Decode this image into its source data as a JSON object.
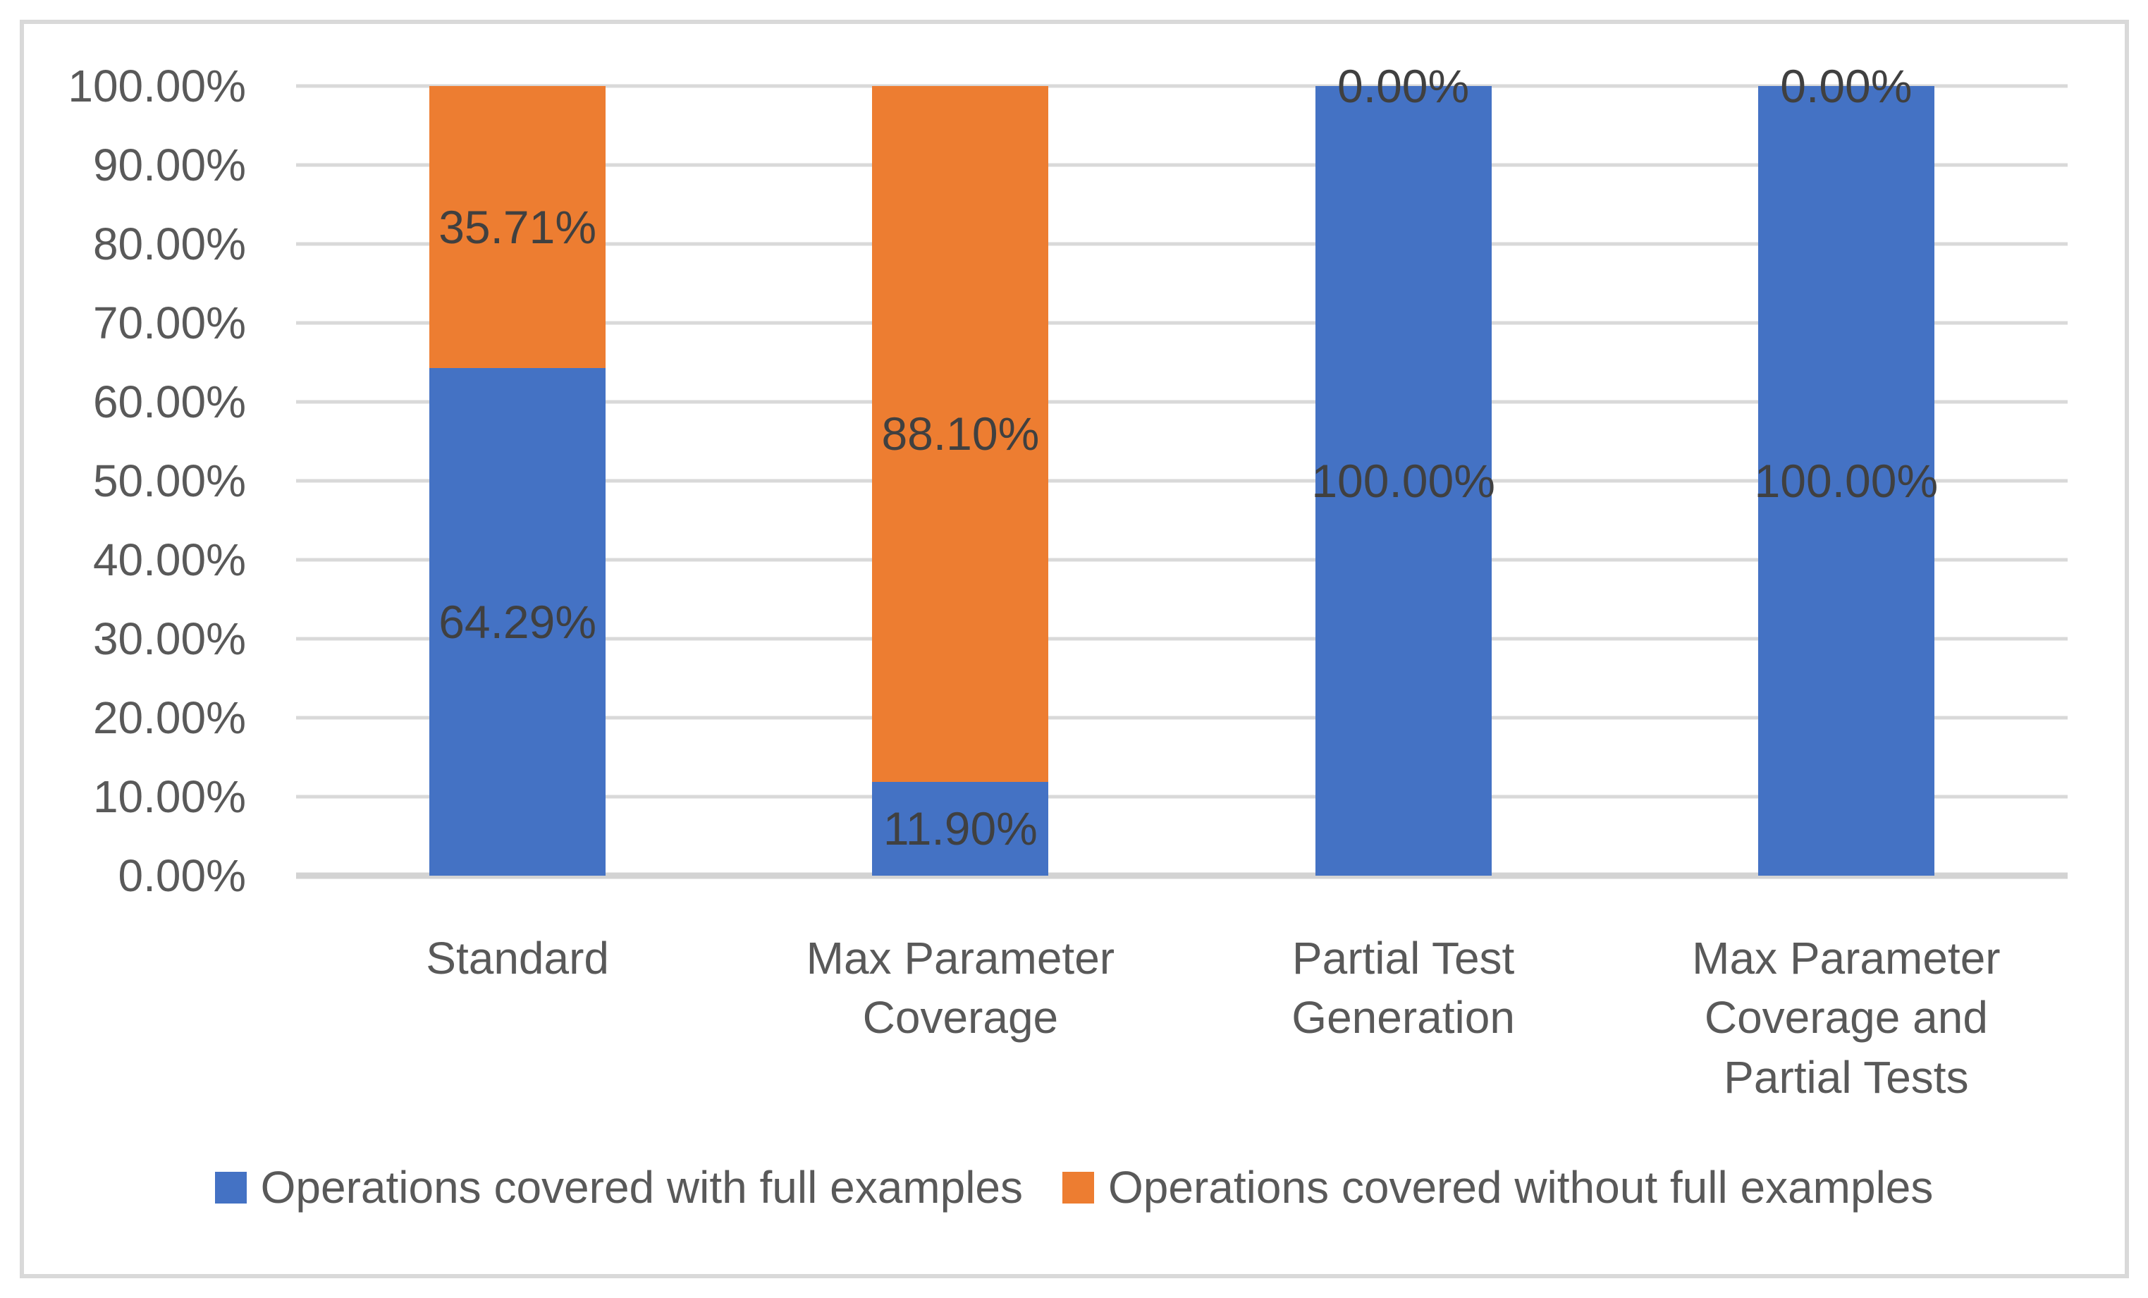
{
  "chart_data": {
    "type": "bar",
    "stacked": true,
    "orientation": "vertical",
    "title": "",
    "xlabel": "",
    "ylabel": "",
    "categories": [
      "Standard",
      "Max Parameter Coverage",
      "Partial Test Generation",
      "Max Parameter Coverage and Partial Tests"
    ],
    "series": [
      {
        "name": "Operations covered with full examples",
        "color": "#4472C4",
        "values": [
          64.29,
          11.9,
          100.0,
          100.0
        ]
      },
      {
        "name": "Operations covered without full examples",
        "color": "#ED7D31",
        "values": [
          35.71,
          88.1,
          0.0,
          0.0
        ]
      }
    ],
    "data_labels": {
      "show": true,
      "format": "0.00%",
      "placement": "center",
      "values_text": [
        [
          "64.29%",
          "11.90%",
          "100.00%",
          "100.00%"
        ],
        [
          "35.71%",
          "88.10%",
          "0.00%",
          "0.00%"
        ]
      ]
    },
    "y_axis": {
      "min": 0,
      "max": 100,
      "step": 10,
      "tick_labels": [
        "0.00%",
        "10.00%",
        "20.00%",
        "30.00%",
        "40.00%",
        "50.00%",
        "60.00%",
        "70.00%",
        "80.00%",
        "90.00%",
        "100.00%"
      ]
    },
    "gridlines": true,
    "legend": {
      "position": "bottom",
      "entries": [
        {
          "label": "Operations covered with full examples",
          "color": "#4472C4"
        },
        {
          "label": "Operations covered without full examples",
          "color": "#ED7D31"
        }
      ]
    },
    "colors": {
      "gridline": "#D9D9D9",
      "axis_line": "#D3D3D3",
      "tick_text": "#595959",
      "category_text": "#595959",
      "legend_text": "#595959",
      "data_label_text": "#404040",
      "frame_border": "#D9D9D9",
      "background": "#FFFFFF"
    }
  }
}
